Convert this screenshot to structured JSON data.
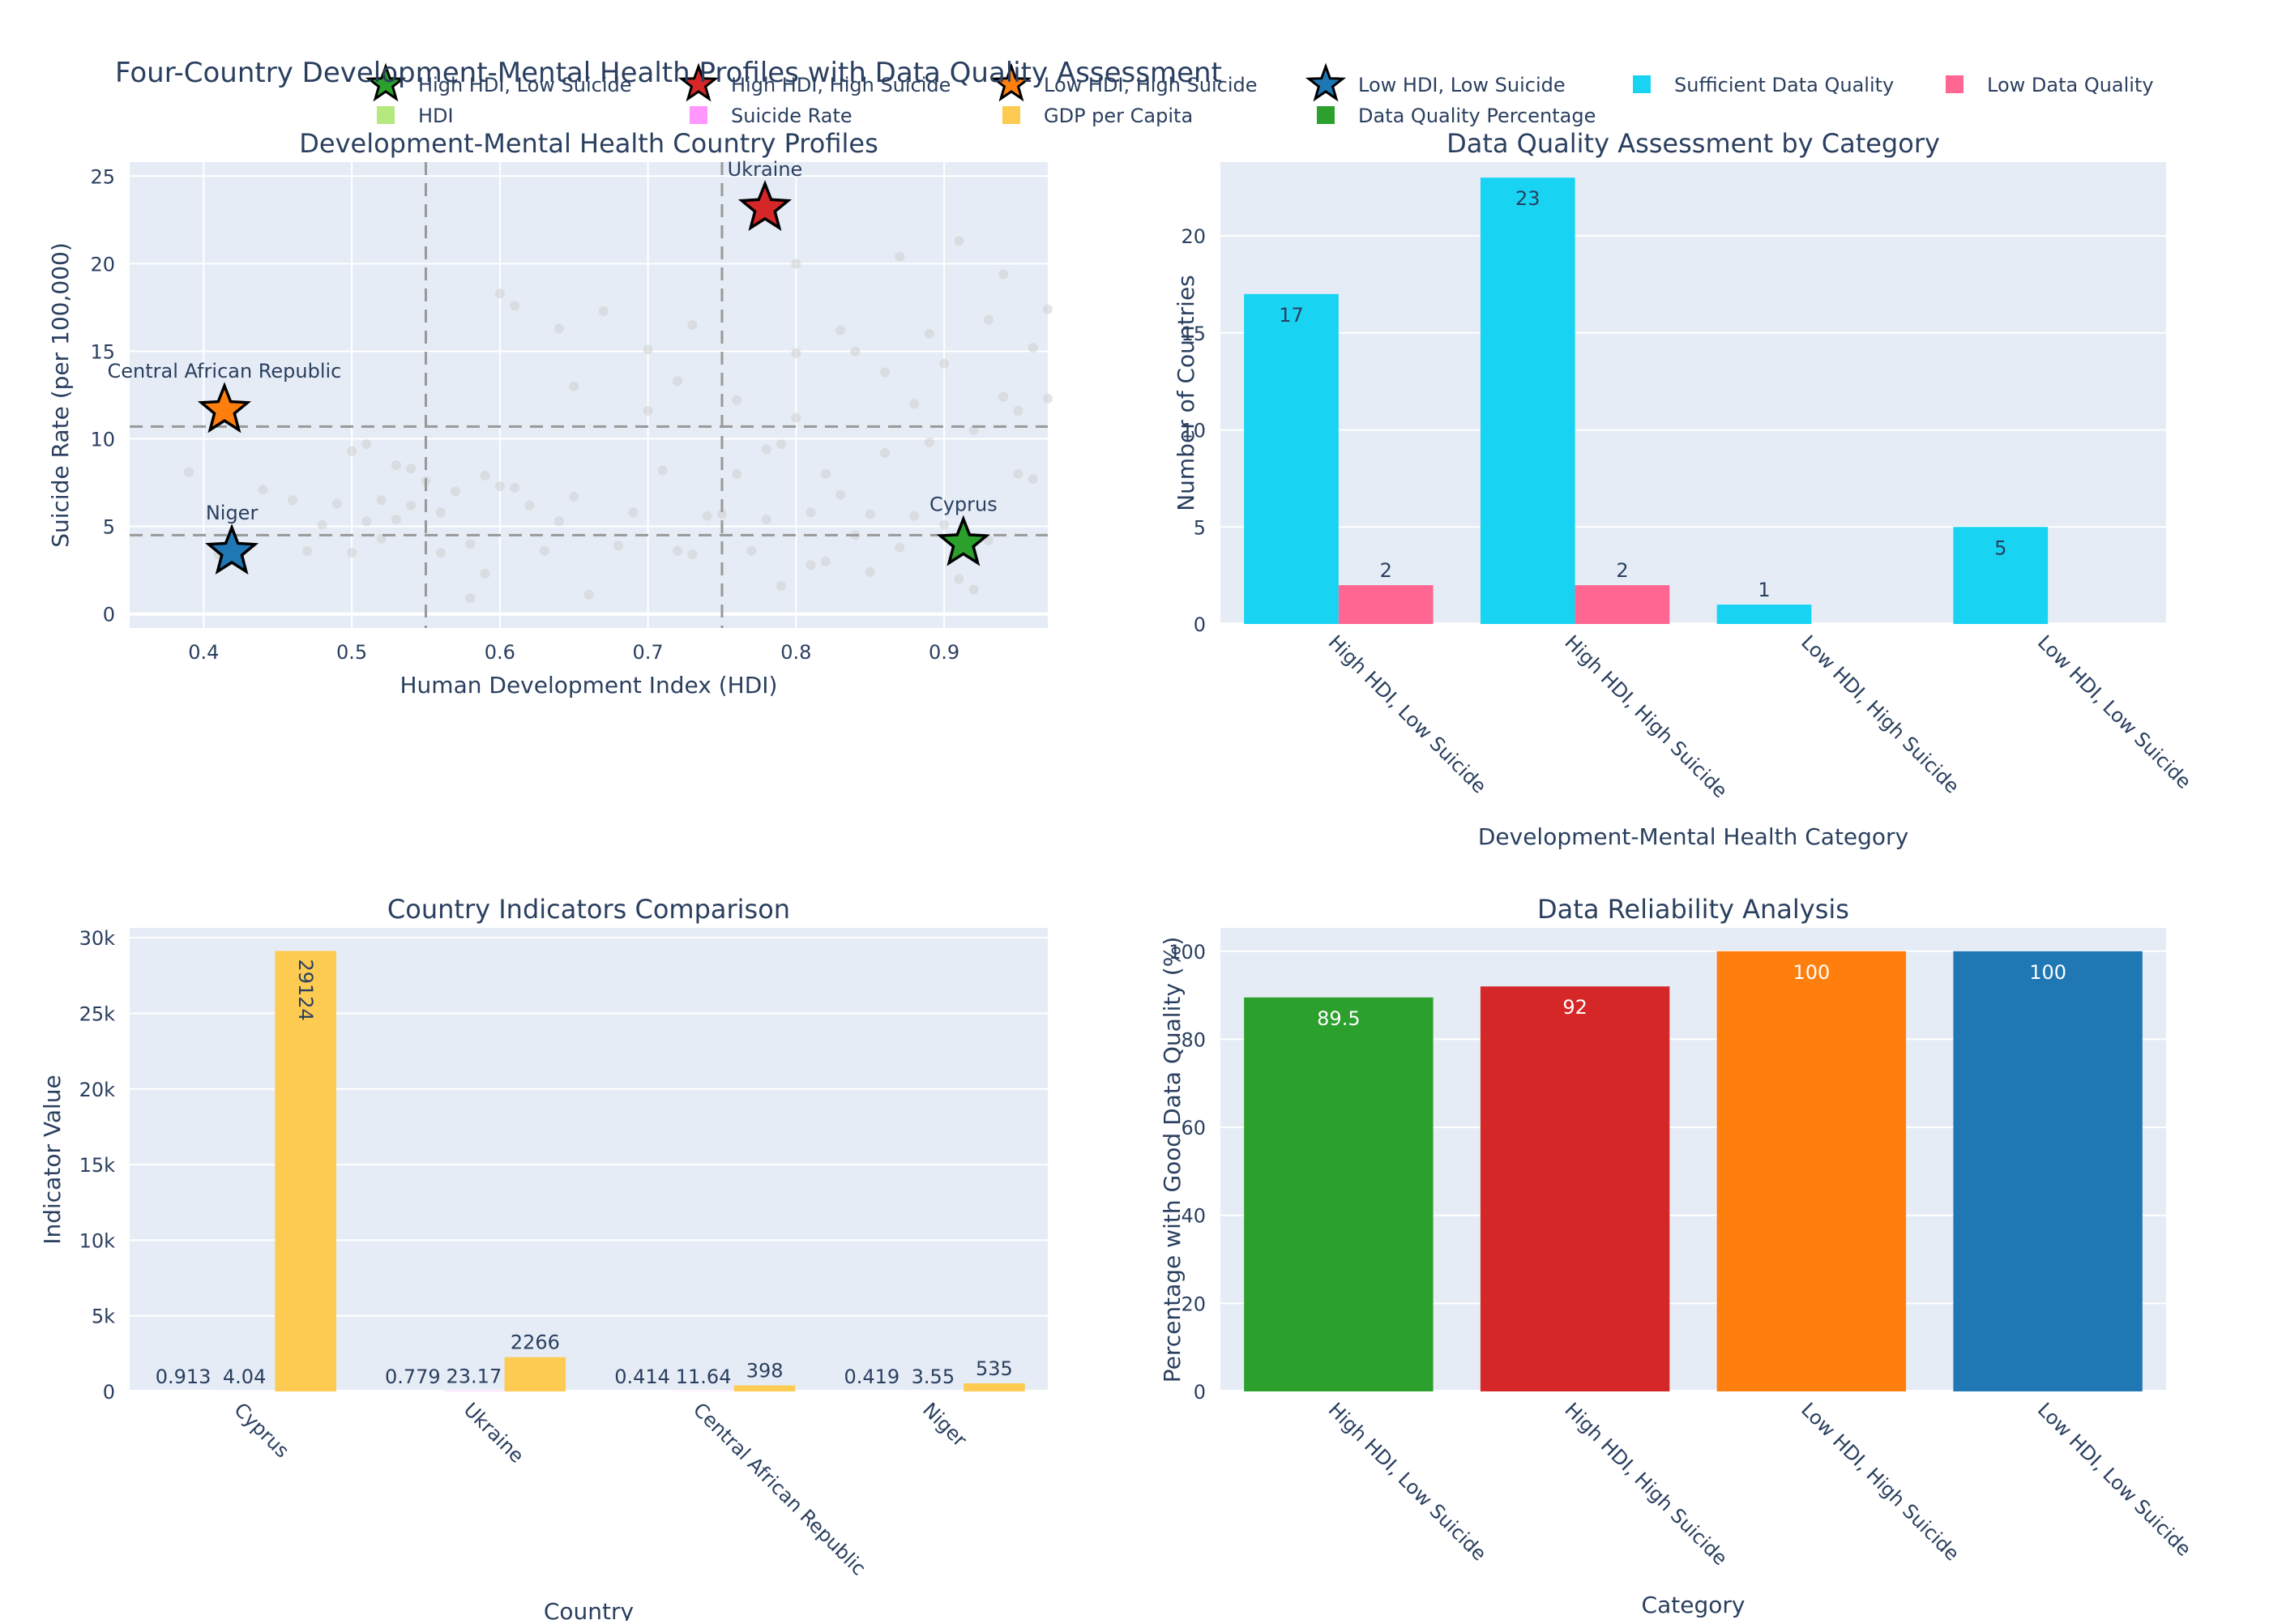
{
  "title": "Four-Country Development-Mental Health Profiles with Data Quality Assessment",
  "legend": [
    {
      "label": "High HDI, Low Suicide",
      "marker": "star",
      "color": "#2ca02c"
    },
    {
      "label": "High HDI, High Suicide",
      "marker": "star",
      "color": "#d62728"
    },
    {
      "label": "Low HDI, High Suicide",
      "marker": "star",
      "color": "#ff7f0e"
    },
    {
      "label": "Low HDI, Low Suicide",
      "marker": "star",
      "color": "#1f77b4"
    },
    {
      "label": "Sufficient Data Quality",
      "marker": "square",
      "color": "#19d3f3"
    },
    {
      "label": "Low Data Quality",
      "marker": "square",
      "color": "#ff6692"
    },
    {
      "label": "HDI",
      "marker": "square",
      "color": "#b6e880"
    },
    {
      "label": "Suicide Rate",
      "marker": "square",
      "color": "#ff97ff"
    },
    {
      "label": "GDP per Capita",
      "marker": "square",
      "color": "#fecb52"
    },
    {
      "label": "Data Quality Percentage",
      "marker": "square",
      "color": "#2ca02c"
    }
  ],
  "colors": {
    "plot_bg": "#e5ecf6",
    "grid": "#ffffff",
    "text": "#2a3f5f",
    "background_points": "#d0d0d0",
    "threshold_line": "#999999"
  },
  "chart_data": [
    {
      "type": "scatter",
      "title": "Development-Mental Health Country Profiles",
      "xlabel": "Human Development Index (HDI)",
      "ylabel": "Suicide Rate (per 100,000)",
      "xlim": [
        0.35,
        0.97
      ],
      "ylim": [
        -0.8,
        25.8
      ],
      "xticks": [
        0.4,
        0.5,
        0.6,
        0.7,
        0.8,
        0.9
      ],
      "xtick_labels": [
        "0.4",
        "0.5",
        "0.6",
        "0.7",
        "0.8",
        "0.9"
      ],
      "yticks": [
        0,
        5,
        10,
        15,
        20,
        25
      ],
      "ytick_labels": [
        "0",
        "5",
        "10",
        "15",
        "20",
        "25"
      ],
      "grid": true,
      "thresholds": {
        "hdi": [
          0.55,
          0.75
        ],
        "suicide": [
          4.5,
          10.7
        ]
      },
      "highlighted": [
        {
          "name": "Cyprus",
          "hdi": 0.913,
          "suicide": 4.04,
          "color": "#2ca02c"
        },
        {
          "name": "Ukraine",
          "hdi": 0.779,
          "suicide": 23.17,
          "color": "#d62728"
        },
        {
          "name": "Central African Republic",
          "hdi": 0.414,
          "suicide": 11.64,
          "color": "#ff7f0e"
        },
        {
          "name": "Niger",
          "hdi": 0.419,
          "suicide": 3.55,
          "color": "#1f77b4"
        }
      ],
      "background": [
        [
          0.39,
          8.1
        ],
        [
          0.41,
          3.4
        ],
        [
          0.44,
          7.1
        ],
        [
          0.46,
          6.5
        ],
        [
          0.47,
          3.6
        ],
        [
          0.48,
          5.1
        ],
        [
          0.49,
          6.3
        ],
        [
          0.5,
          9.3
        ],
        [
          0.5,
          3.5
        ],
        [
          0.51,
          9.7
        ],
        [
          0.51,
          5.3
        ],
        [
          0.52,
          6.5
        ],
        [
          0.52,
          4.3
        ],
        [
          0.53,
          8.5
        ],
        [
          0.53,
          5.4
        ],
        [
          0.54,
          8.3
        ],
        [
          0.54,
          6.2
        ],
        [
          0.55,
          7.6
        ],
        [
          0.56,
          3.5
        ],
        [
          0.56,
          5.8
        ],
        [
          0.57,
          7.0
        ],
        [
          0.58,
          0.9
        ],
        [
          0.58,
          4.0
        ],
        [
          0.59,
          7.9
        ],
        [
          0.59,
          2.3
        ],
        [
          0.6,
          18.3
        ],
        [
          0.6,
          7.3
        ],
        [
          0.61,
          7.2
        ],
        [
          0.61,
          17.6
        ],
        [
          0.62,
          6.2
        ],
        [
          0.63,
          3.6
        ],
        [
          0.64,
          16.3
        ],
        [
          0.64,
          5.3
        ],
        [
          0.65,
          13.0
        ],
        [
          0.65,
          6.7
        ],
        [
          0.66,
          1.1
        ],
        [
          0.67,
          17.3
        ],
        [
          0.68,
          3.9
        ],
        [
          0.69,
          5.8
        ],
        [
          0.7,
          15.1
        ],
        [
          0.7,
          11.6
        ],
        [
          0.71,
          8.2
        ],
        [
          0.72,
          13.3
        ],
        [
          0.72,
          3.6
        ],
        [
          0.73,
          16.5
        ],
        [
          0.73,
          3.4
        ],
        [
          0.74,
          5.6
        ],
        [
          0.75,
          5.7
        ],
        [
          0.76,
          12.2
        ],
        [
          0.76,
          8.0
        ],
        [
          0.77,
          3.6
        ],
        [
          0.78,
          9.4
        ],
        [
          0.78,
          5.4
        ],
        [
          0.79,
          9.7
        ],
        [
          0.79,
          1.6
        ],
        [
          0.8,
          20.0
        ],
        [
          0.8,
          11.2
        ],
        [
          0.8,
          14.9
        ],
        [
          0.81,
          5.8
        ],
        [
          0.81,
          2.8
        ],
        [
          0.82,
          3.0
        ],
        [
          0.82,
          8.0
        ],
        [
          0.83,
          16.2
        ],
        [
          0.83,
          6.8
        ],
        [
          0.84,
          4.5
        ],
        [
          0.84,
          15.0
        ],
        [
          0.85,
          2.4
        ],
        [
          0.85,
          5.7
        ],
        [
          0.86,
          13.8
        ],
        [
          0.86,
          9.2
        ],
        [
          0.87,
          20.4
        ],
        [
          0.87,
          3.8
        ],
        [
          0.88,
          12.0
        ],
        [
          0.88,
          5.6
        ],
        [
          0.89,
          16.0
        ],
        [
          0.89,
          9.8
        ],
        [
          0.9,
          14.3
        ],
        [
          0.9,
          5.1
        ],
        [
          0.91,
          2.0
        ],
        [
          0.91,
          21.3
        ],
        [
          0.92,
          10.5
        ],
        [
          0.92,
          1.4
        ],
        [
          0.93,
          16.8
        ],
        [
          0.93,
          4.2
        ],
        [
          0.94,
          12.4
        ],
        [
          0.94,
          19.4
        ],
        [
          0.95,
          11.6
        ],
        [
          0.95,
          8.0
        ],
        [
          0.96,
          15.2
        ],
        [
          0.96,
          7.7
        ],
        [
          0.97,
          17.4
        ],
        [
          0.97,
          12.3
        ]
      ]
    },
    {
      "type": "bar",
      "title": "Data Quality Assessment by Category",
      "xlabel": "Development-Mental Health Category",
      "ylabel": "Number of Countries",
      "categories": [
        "High HDI, Low Suicide",
        "High HDI, High Suicide",
        "Low HDI, High Suicide",
        "Low HDI, Low Suicide"
      ],
      "series": [
        {
          "name": "Sufficient Data Quality",
          "values": [
            17,
            23,
            1,
            5
          ],
          "color": "#19d3f3"
        },
        {
          "name": "Low Data Quality",
          "values": [
            2,
            2,
            0,
            0
          ],
          "color": "#ff6692"
        }
      ],
      "ylim": [
        0,
        23.8
      ],
      "yticks": [
        0,
        5,
        10,
        15,
        20
      ],
      "ytick_labels": [
        "0",
        "5",
        "10",
        "15",
        "20"
      ],
      "grid": true
    },
    {
      "type": "bar",
      "title": "Country Indicators Comparison",
      "xlabel": "Country",
      "ylabel": "Indicator Value",
      "categories": [
        "Cyprus",
        "Ukraine",
        "Central African Republic",
        "Niger"
      ],
      "series": [
        {
          "name": "HDI",
          "values": [
            0.913,
            0.779,
            0.414,
            0.419
          ],
          "labels": [
            "0.913",
            "0.779",
            "0.414",
            "0.419"
          ],
          "color": "#b6e880"
        },
        {
          "name": "Suicide Rate",
          "values": [
            4.04,
            23.17,
            11.64,
            3.55
          ],
          "labels": [
            "4.04",
            "23.17",
            "11.64",
            "3.55"
          ],
          "color": "#ff97ff"
        },
        {
          "name": "GDP per Capita",
          "values": [
            29124,
            2266,
            398,
            535
          ],
          "labels": [
            "29124",
            "2266",
            "398",
            "535"
          ],
          "color": "#fecb52"
        }
      ],
      "ylim": [
        0,
        30650
      ],
      "yticks": [
        0,
        5000,
        10000,
        15000,
        20000,
        25000,
        30000
      ],
      "ytick_labels": [
        "0",
        "5k",
        "10k",
        "15k",
        "20k",
        "25k",
        "30k"
      ],
      "grid": true
    },
    {
      "type": "bar",
      "title": "Data Reliability Analysis",
      "xlabel": "Category",
      "ylabel": "Percentage with Good Data Quality (%)",
      "categories": [
        "High HDI, Low Suicide",
        "High HDI, High Suicide",
        "Low HDI, High Suicide",
        "Low HDI, Low Suicide"
      ],
      "series": [
        {
          "name": "Data Quality Percentage",
          "values": [
            89.5,
            92,
            100,
            100
          ],
          "labels": [
            "89.5",
            "92",
            "100",
            "100"
          ],
          "colors": [
            "#2ca02c",
            "#d62728",
            "#ff7f0e",
            "#1f77b4"
          ]
        }
      ],
      "ylim": [
        0,
        105.3
      ],
      "yticks": [
        0,
        20,
        40,
        60,
        80,
        100
      ],
      "ytick_labels": [
        "0",
        "20",
        "40",
        "60",
        "80",
        "100"
      ],
      "grid": true
    }
  ]
}
